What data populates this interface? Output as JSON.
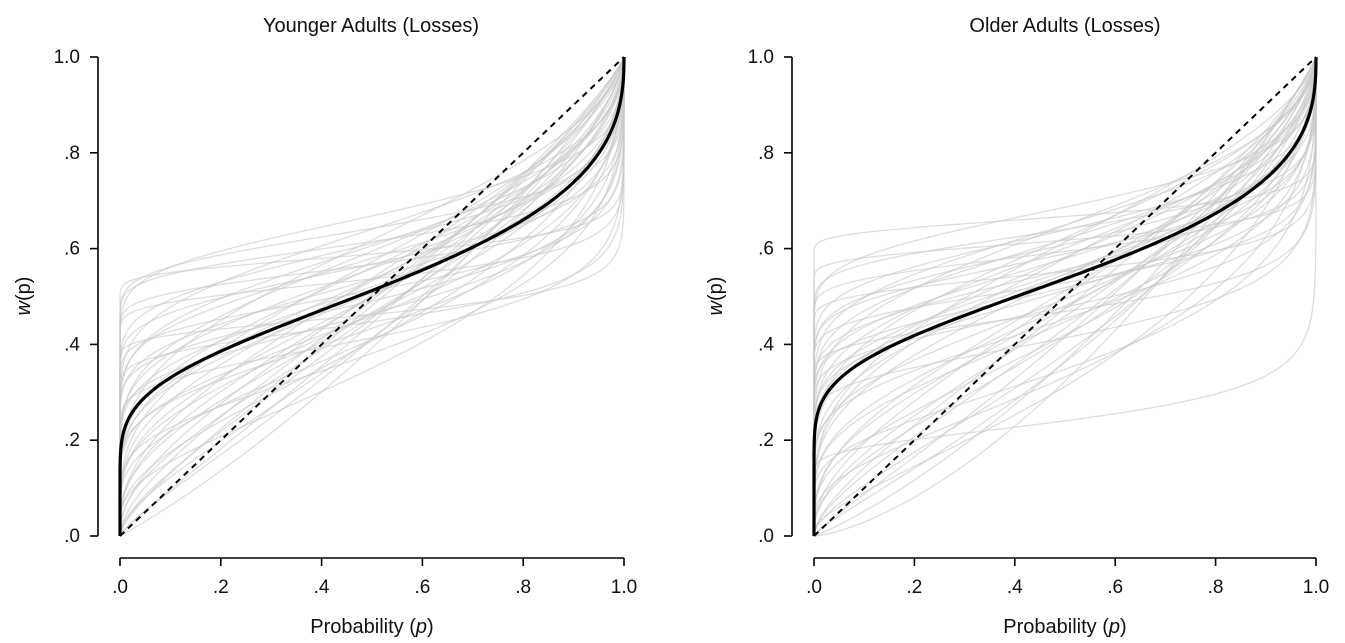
{
  "chart_data": [
    {
      "type": "line",
      "title": "Younger Adults (Losses)",
      "xlabel_prefix": "Probability (",
      "xlabel_var": "p",
      "xlabel_suffix": ")",
      "ylabel_var": "w",
      "ylabel_paren": "(p)",
      "xlim": [
        0,
        1
      ],
      "ylim": [
        0,
        1
      ],
      "x_tick_labels": [
        ".0",
        ".2",
        ".4",
        ".6",
        ".8",
        "1.0"
      ],
      "y_tick_labels": [
        ".0",
        ".2",
        ".4",
        ".6",
        ".8",
        "1.0"
      ],
      "grid": false,
      "function": "Prelec two-parameter probability weighting w(p) = exp(-delta * (-ln p)^gamma)",
      "mean_curve": {
        "gamma": 0.42,
        "delta": 0.78
      },
      "identity_line": {
        "x": [
          0,
          1
        ],
        "y": [
          0,
          1
        ]
      },
      "individual_curves": [
        {
          "gamma": 0.1,
          "delta": 0.55
        },
        {
          "gamma": 0.12,
          "delta": 0.65
        },
        {
          "gamma": 0.15,
          "delta": 0.6
        },
        {
          "gamma": 0.18,
          "delta": 0.52
        },
        {
          "gamma": 0.2,
          "delta": 0.72
        },
        {
          "gamma": 0.22,
          "delta": 0.48
        },
        {
          "gamma": 0.25,
          "delta": 0.62
        },
        {
          "gamma": 0.28,
          "delta": 0.85
        },
        {
          "gamma": 0.3,
          "delta": 0.55
        },
        {
          "gamma": 0.32,
          "delta": 0.7
        },
        {
          "gamma": 0.35,
          "delta": 0.95
        },
        {
          "gamma": 0.35,
          "delta": 0.62
        },
        {
          "gamma": 0.38,
          "delta": 0.75
        },
        {
          "gamma": 0.4,
          "delta": 0.58
        },
        {
          "gamma": 0.4,
          "delta": 0.9
        },
        {
          "gamma": 0.42,
          "delta": 0.68
        },
        {
          "gamma": 0.45,
          "delta": 0.8
        },
        {
          "gamma": 0.45,
          "delta": 1.05
        },
        {
          "gamma": 0.48,
          "delta": 0.62
        },
        {
          "gamma": 0.5,
          "delta": 0.75
        },
        {
          "gamma": 0.5,
          "delta": 0.92
        },
        {
          "gamma": 0.52,
          "delta": 0.7
        },
        {
          "gamma": 0.55,
          "delta": 0.85
        },
        {
          "gamma": 0.55,
          "delta": 1.1
        },
        {
          "gamma": 0.58,
          "delta": 0.78
        },
        {
          "gamma": 0.6,
          "delta": 0.95
        },
        {
          "gamma": 0.62,
          "delta": 0.7
        },
        {
          "gamma": 0.65,
          "delta": 0.88
        },
        {
          "gamma": 0.68,
          "delta": 1.0
        },
        {
          "gamma": 0.7,
          "delta": 0.8
        },
        {
          "gamma": 0.72,
          "delta": 1.15
        },
        {
          "gamma": 0.75,
          "delta": 0.9
        },
        {
          "gamma": 0.78,
          "delta": 1.05
        },
        {
          "gamma": 0.8,
          "delta": 0.95
        },
        {
          "gamma": 0.82,
          "delta": 1.2
        },
        {
          "gamma": 0.85,
          "delta": 1.0
        },
        {
          "gamma": 0.88,
          "delta": 1.12
        },
        {
          "gamma": 0.9,
          "delta": 1.3
        },
        {
          "gamma": 0.3,
          "delta": 0.45
        },
        {
          "gamma": 0.25,
          "delta": 0.78
        },
        {
          "gamma": 0.42,
          "delta": 0.52
        },
        {
          "gamma": 0.6,
          "delta": 0.6
        },
        {
          "gamma": 0.36,
          "delta": 1.1
        },
        {
          "gamma": 0.48,
          "delta": 1.25
        },
        {
          "gamma": 0.2,
          "delta": 0.95
        },
        {
          "gamma": 0.15,
          "delta": 0.85
        },
        {
          "gamma": 0.1,
          "delta": 0.8
        }
      ]
    },
    {
      "type": "line",
      "title": "Older Adults (Losses)",
      "xlabel_prefix": "Probability (",
      "xlabel_var": "p",
      "xlabel_suffix": ")",
      "ylabel_var": "w",
      "ylabel_paren": "(p)",
      "xlim": [
        0,
        1
      ],
      "ylim": [
        0,
        1
      ],
      "x_tick_labels": [
        ".0",
        ".2",
        ".4",
        ".6",
        ".8",
        "1.0"
      ],
      "y_tick_labels": [
        ".0",
        ".2",
        ".4",
        ".6",
        ".8",
        "1.0"
      ],
      "grid": false,
      "function": "Prelec two-parameter probability weighting w(p) = exp(-delta * (-ln p)^gamma)",
      "mean_curve": {
        "gamma": 0.4,
        "delta": 0.72
      },
      "identity_line": {
        "x": [
          0,
          1
        ],
        "y": [
          0,
          1
        ]
      },
      "individual_curves": [
        {
          "gamma": 0.1,
          "delta": 0.5
        },
        {
          "gamma": 0.1,
          "delta": 0.42
        },
        {
          "gamma": 0.12,
          "delta": 0.62
        },
        {
          "gamma": 0.14,
          "delta": 1.5
        },
        {
          "gamma": 0.15,
          "delta": 0.55
        },
        {
          "gamma": 0.18,
          "delta": 0.68
        },
        {
          "gamma": 0.2,
          "delta": 0.48
        },
        {
          "gamma": 0.22,
          "delta": 0.8
        },
        {
          "gamma": 0.25,
          "delta": 0.58
        },
        {
          "gamma": 0.28,
          "delta": 0.65
        },
        {
          "gamma": 0.3,
          "delta": 0.5
        },
        {
          "gamma": 0.32,
          "delta": 0.75
        },
        {
          "gamma": 0.35,
          "delta": 0.62
        },
        {
          "gamma": 0.35,
          "delta": 0.9
        },
        {
          "gamma": 0.38,
          "delta": 0.55
        },
        {
          "gamma": 0.4,
          "delta": 0.7
        },
        {
          "gamma": 0.42,
          "delta": 0.82
        },
        {
          "gamma": 0.45,
          "delta": 0.6
        },
        {
          "gamma": 0.45,
          "delta": 0.95
        },
        {
          "gamma": 0.48,
          "delta": 0.72
        },
        {
          "gamma": 0.5,
          "delta": 0.65
        },
        {
          "gamma": 0.5,
          "delta": 0.88
        },
        {
          "gamma": 0.52,
          "delta": 1.05
        },
        {
          "gamma": 0.55,
          "delta": 0.75
        },
        {
          "gamma": 0.58,
          "delta": 0.92
        },
        {
          "gamma": 0.6,
          "delta": 0.68
        },
        {
          "gamma": 0.62,
          "delta": 1.1
        },
        {
          "gamma": 0.65,
          "delta": 0.85
        },
        {
          "gamma": 0.68,
          "delta": 1.0
        },
        {
          "gamma": 0.7,
          "delta": 1.25
        },
        {
          "gamma": 0.72,
          "delta": 0.9
        },
        {
          "gamma": 0.75,
          "delta": 1.1
        },
        {
          "gamma": 0.78,
          "delta": 1.35
        },
        {
          "gamma": 0.8,
          "delta": 1.0
        },
        {
          "gamma": 0.85,
          "delta": 1.2
        },
        {
          "gamma": 0.9,
          "delta": 1.4
        },
        {
          "gamma": 0.95,
          "delta": 1.6
        },
        {
          "gamma": 0.3,
          "delta": 0.42
        },
        {
          "gamma": 0.25,
          "delta": 0.72
        },
        {
          "gamma": 0.4,
          "delta": 0.5
        },
        {
          "gamma": 0.55,
          "delta": 0.58
        },
        {
          "gamma": 0.35,
          "delta": 1.2
        },
        {
          "gamma": 0.45,
          "delta": 1.3
        },
        {
          "gamma": 0.2,
          "delta": 0.95
        },
        {
          "gamma": 0.15,
          "delta": 0.8
        },
        {
          "gamma": 0.6,
          "delta": 1.45
        },
        {
          "gamma": 0.28,
          "delta": 0.55
        },
        {
          "gamma": 0.38,
          "delta": 0.68
        },
        {
          "gamma": 0.5,
          "delta": 0.52
        },
        {
          "gamma": 0.65,
          "delta": 0.62
        }
      ]
    }
  ],
  "colors": {
    "individual_curve": "#c8c8c8",
    "mean_curve": "#000000",
    "identity_line": "#000000",
    "axes": "#000000",
    "background": "#ffffff"
  }
}
